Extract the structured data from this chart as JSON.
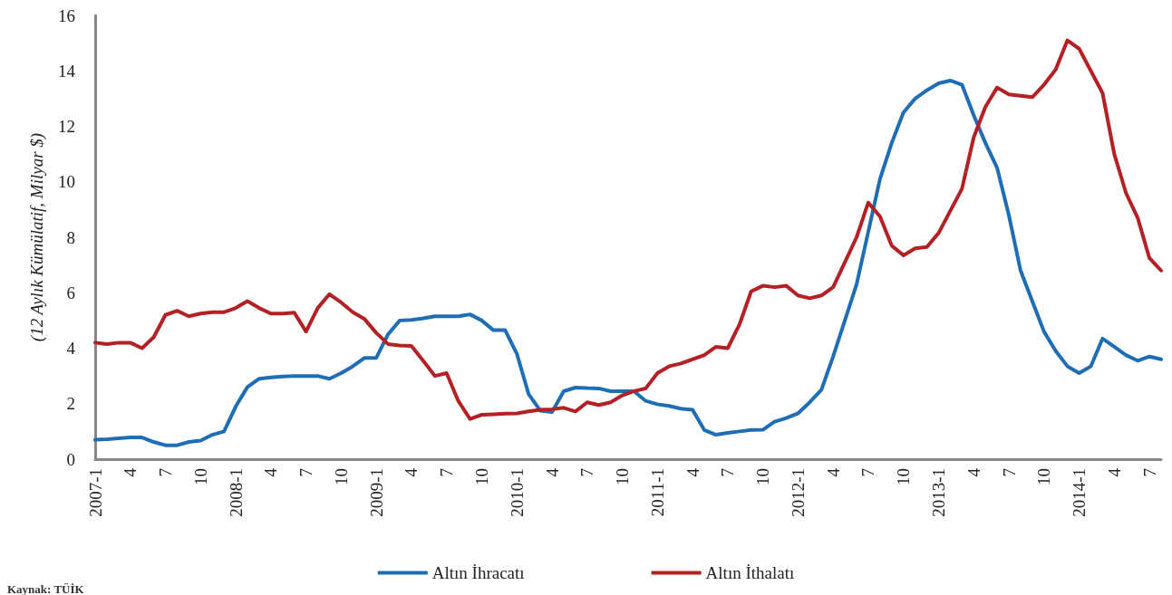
{
  "chart_data": {
    "type": "line",
    "ylabel": "(12 Aylık Kümülatif, Milyar $)",
    "categories": [
      "2007-1",
      null,
      null,
      "4",
      null,
      null,
      "7",
      null,
      null,
      "10",
      null,
      null,
      "2008-1",
      null,
      null,
      "4",
      null,
      null,
      "7",
      null,
      null,
      "10",
      null,
      null,
      "2009-1",
      null,
      null,
      "4",
      null,
      null,
      "7",
      null,
      null,
      "10",
      null,
      null,
      "2010-1",
      null,
      null,
      "4",
      null,
      null,
      "7",
      null,
      null,
      "10",
      null,
      null,
      "2011-1",
      null,
      null,
      "4",
      null,
      null,
      "7",
      null,
      null,
      "10",
      null,
      null,
      "2012-1",
      null,
      null,
      "4",
      null,
      null,
      "7",
      null,
      null,
      "10",
      null,
      null,
      "2013-1",
      null,
      null,
      "4",
      null,
      null,
      "7",
      null,
      null,
      "10",
      null,
      null,
      "2014-1",
      null,
      null,
      "4",
      null,
      null,
      "7",
      null
    ],
    "series": [
      {
        "name": "Altın İhracatı",
        "color": "#1f6db5",
        "values": [
          0.7,
          0.72,
          0.75,
          0.78,
          0.78,
          0.62,
          0.5,
          0.5,
          0.62,
          0.67,
          0.88,
          1.0,
          1.9,
          2.6,
          2.9,
          2.95,
          2.98,
          3.0,
          3.0,
          3.0,
          2.9,
          3.1,
          3.35,
          3.65,
          3.65,
          4.5,
          5.0,
          5.02,
          5.08,
          5.15,
          5.15,
          5.15,
          5.22,
          5.0,
          4.65,
          4.65,
          3.8,
          2.35,
          1.75,
          1.7,
          2.45,
          2.58,
          2.56,
          2.55,
          2.45,
          2.45,
          2.45,
          2.1,
          1.98,
          1.92,
          1.82,
          1.78,
          1.05,
          0.88,
          0.95,
          1.0,
          1.05,
          1.06,
          1.35,
          1.48,
          1.65,
          2.05,
          2.5,
          3.7,
          5.0,
          6.3,
          8.2,
          10.1,
          11.4,
          12.5,
          13.0,
          13.3,
          13.55,
          13.65,
          13.5,
          12.4,
          11.4,
          10.5,
          8.8,
          6.8,
          5.7,
          4.6,
          3.9,
          3.35,
          3.1,
          3.35,
          4.35,
          4.05,
          3.75,
          3.55,
          3.7,
          3.6
        ]
      },
      {
        "name": "Altın İthalatı",
        "color": "#b52025",
        "values": [
          4.2,
          4.15,
          4.2,
          4.2,
          4.0,
          4.4,
          5.2,
          5.35,
          5.15,
          5.25,
          5.3,
          5.3,
          5.45,
          5.7,
          5.45,
          5.25,
          5.25,
          5.28,
          4.6,
          5.45,
          5.95,
          5.65,
          5.3,
          5.05,
          4.55,
          4.15,
          4.1,
          4.08,
          3.55,
          3.0,
          3.1,
          2.1,
          1.45,
          1.6,
          1.62,
          1.64,
          1.65,
          1.72,
          1.78,
          1.8,
          1.85,
          1.72,
          2.05,
          1.95,
          2.05,
          2.3,
          2.45,
          2.55,
          3.1,
          3.35,
          3.45,
          3.6,
          3.75,
          4.05,
          4.0,
          4.85,
          6.05,
          6.25,
          6.2,
          6.25,
          5.9,
          5.8,
          5.9,
          6.2,
          7.1,
          8.0,
          9.25,
          8.75,
          7.7,
          7.35,
          7.6,
          7.65,
          8.15,
          8.95,
          9.75,
          11.6,
          12.7,
          13.4,
          13.15,
          13.1,
          13.05,
          13.5,
          14.05,
          15.1,
          14.8,
          14.0,
          13.2,
          11.0,
          9.6,
          8.7,
          7.25,
          6.8
        ]
      }
    ],
    "ylim": [
      0,
      16
    ],
    "yticks": [
      0,
      2,
      4,
      6,
      8,
      10,
      12,
      14,
      16
    ],
    "grid": false,
    "legend": "bottom",
    "marker": "none",
    "line_style": "solid",
    "annotations": [
      "Kaynak: TÜİK"
    ]
  }
}
